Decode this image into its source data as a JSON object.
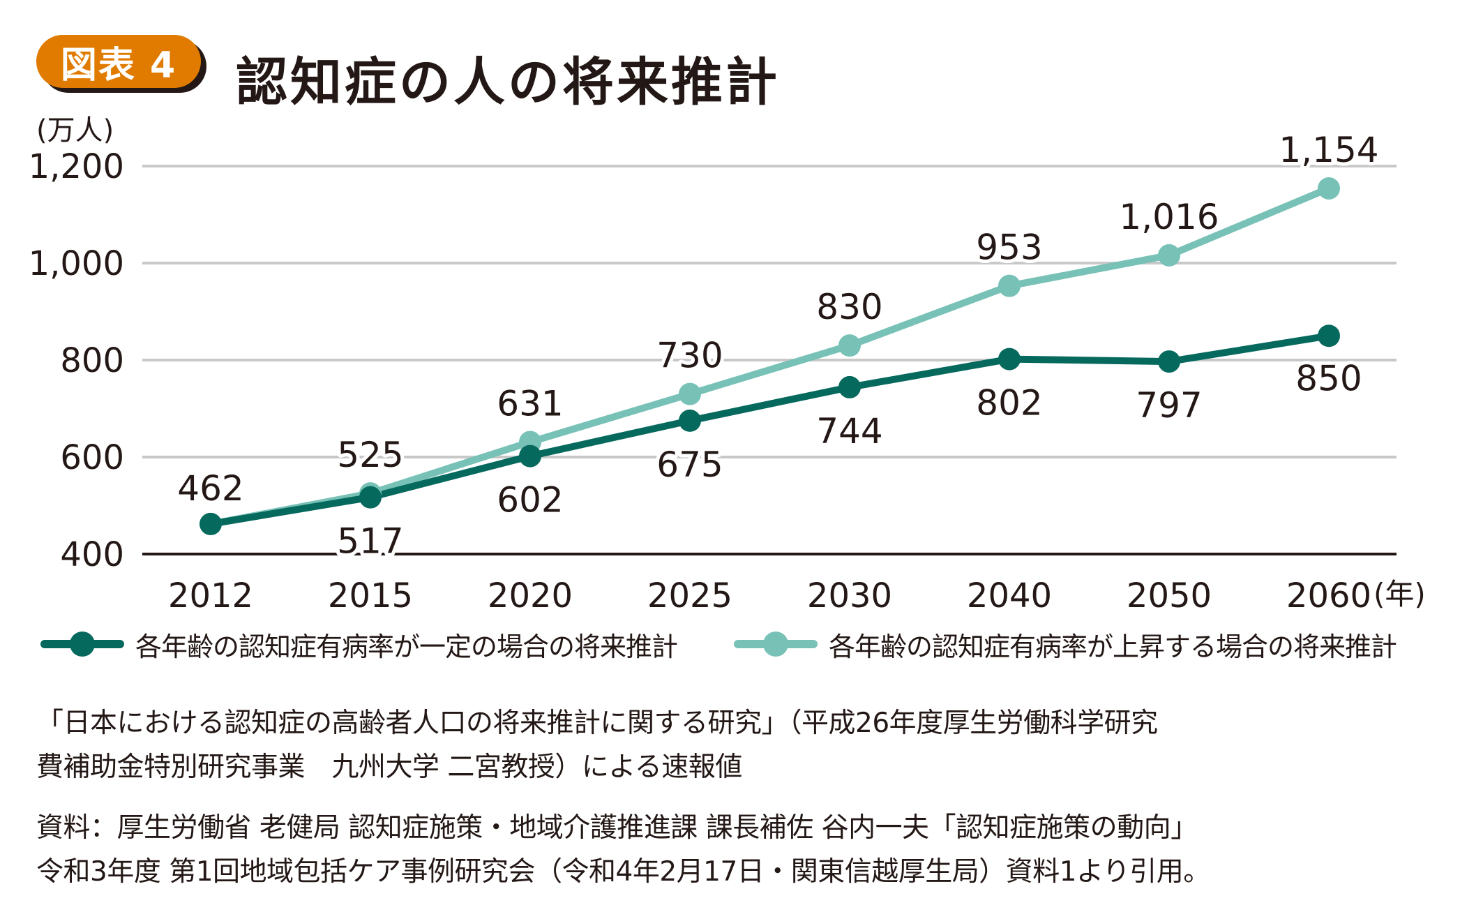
{
  "header": {
    "badge": "図表 4",
    "title": "認知症の人の将来推計"
  },
  "colors": {
    "badge": "#e07b00",
    "series_constant": "#06695e",
    "series_rising": "#77c1b7",
    "grid": "#c8c8c8",
    "axis": "#231815"
  },
  "chart_data": {
    "type": "line",
    "title": "認知症の人の将来推計",
    "ylabel": "(万人)",
    "xlabel_unit": "(年)",
    "ylim": [
      400,
      1200
    ],
    "yticks": [
      400,
      600,
      800,
      1000,
      1200
    ],
    "ytick_labels": [
      "400",
      "600",
      "800",
      "1,000",
      "1,200"
    ],
    "grid": true,
    "categories": [
      "2012",
      "2015",
      "2020",
      "2025",
      "2030",
      "2040",
      "2050",
      "2060"
    ],
    "series": [
      {
        "name": "各年齢の認知症有病率が一定の場合の将来推計",
        "values": [
          462,
          517,
          602,
          675,
          744,
          802,
          797,
          850
        ],
        "labels": [
          "462",
          "517",
          "602",
          "675",
          "744",
          "802",
          "797",
          "850"
        ]
      },
      {
        "name": "各年齢の認知症有病率が上昇する場合の将来推計",
        "values": [
          462,
          525,
          631,
          730,
          830,
          953,
          1016,
          1154
        ],
        "labels": [
          "",
          "525",
          "631",
          "730",
          "830",
          "953",
          "1,016",
          "1,154"
        ]
      }
    ],
    "legend_position": "bottom"
  },
  "notes": {
    "line1": "「日本における認知症の高齢者人口の将来推計に関する研究」（平成26年度厚生労働科学研究",
    "line2": "費補助金特別研究事業　九州大学 二宮教授）による速報値",
    "source1": "資料：厚生労働省 老健局 認知症施策・地域介護推進課 課長補佐 谷内一夫「認知症施策の動向」",
    "source2": "令和3年度 第1回地域包括ケア事例研究会（令和4年2月17日・関東信越厚生局）資料1より引用。"
  }
}
